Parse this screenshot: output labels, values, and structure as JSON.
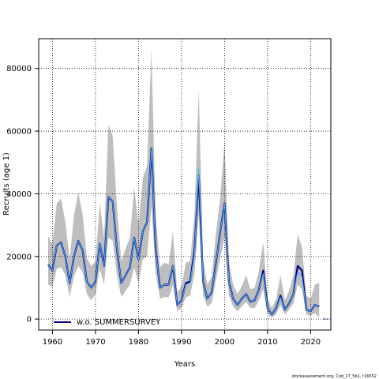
{
  "chart_data": {
    "type": "line",
    "xlabel": "Years",
    "ylabel": "Recruits (age 1)",
    "xlim": [
      1956.8,
      2024.7
    ],
    "ylim": [
      -3500,
      89500
    ],
    "x_ticks": [
      1960,
      1970,
      1980,
      1990,
      2000,
      2010,
      2020
    ],
    "y_ticks": [
      0,
      20000,
      40000,
      60000,
      80000
    ],
    "y_tick_labels": [
      "0",
      "20000",
      "40000",
      "60000",
      "80000"
    ],
    "grid": true,
    "legend_position": "bottom-left",
    "credit": "stockassessment.org, Cod_27_5b1, r16552",
    "series": [
      {
        "name": "w.o. SUMMERSURVEY",
        "color": "#000080",
        "x": [
          1959,
          1960,
          1961,
          1962,
          1963,
          1964,
          1965,
          1966,
          1967,
          1968,
          1969,
          1970,
          1971,
          1972,
          1973,
          1974,
          1975,
          1976,
          1977,
          1978,
          1979,
          1980,
          1981,
          1982,
          1983,
          1984,
          1985,
          1986,
          1987,
          1988,
          1989,
          1990,
          1991,
          1992,
          1993,
          1994,
          1995,
          1996,
          1997,
          1998,
          1999,
          2000,
          2001,
          2002,
          2003,
          2004,
          2005,
          2006,
          2007,
          2008,
          2009,
          2010,
          2011,
          2012,
          2013,
          2014,
          2015,
          2016,
          2017,
          2018,
          2019,
          2020,
          2021,
          2022
        ],
        "y": [
          17500,
          15500,
          23500,
          24500,
          20000,
          11500,
          20000,
          25000,
          22000,
          12000,
          10000,
          12000,
          24000,
          17000,
          39000,
          37500,
          22000,
          11500,
          14000,
          16500,
          26000,
          19000,
          28000,
          31000,
          54500,
          22000,
          10000,
          11000,
          11000,
          17000,
          4500,
          6000,
          11500,
          12000,
          22000,
          46000,
          12000,
          6500,
          8500,
          18000,
          28000,
          37000,
          12000,
          6500,
          4500,
          6500,
          8000,
          5500,
          6000,
          9500,
          15500,
          3500,
          1500,
          3500,
          7500,
          3000,
          5000,
          8000,
          17000,
          15500,
          3000,
          2500,
          4500,
          4000
        ]
      },
      {
        "name": "",
        "color": "#4ab0f0",
        "x": [
          1959,
          1960,
          1961,
          1962,
          1963,
          1964,
          1965,
          1966,
          1967,
          1968,
          1969,
          1970,
          1971,
          1972,
          1973,
          1974,
          1975,
          1976,
          1977,
          1978,
          1979,
          1980,
          1981,
          1982,
          1983,
          1984,
          1985,
          1986,
          1987,
          1988,
          1989,
          1990,
          1991,
          1992,
          1993,
          1994,
          1995,
          1996,
          1997,
          1998,
          1999,
          2000,
          2001,
          2002,
          2003,
          2004,
          2005,
          2006,
          2007,
          2008,
          2009,
          2010,
          2011,
          2012,
          2013,
          2014,
          2015,
          2016,
          2017,
          2018,
          2019,
          2020,
          2021,
          2022
        ],
        "y": [
          17500,
          15500,
          23500,
          24500,
          20000,
          11500,
          20000,
          25000,
          22000,
          12000,
          10000,
          12000,
          24000,
          17000,
          39000,
          37500,
          22000,
          11500,
          14000,
          16500,
          26000,
          19000,
          28000,
          31000,
          54500,
          22000,
          10000,
          11000,
          11000,
          17000,
          4500,
          6000,
          11000,
          11500,
          21000,
          48000,
          12000,
          6500,
          8500,
          18000,
          28000,
          37000,
          12000,
          6500,
          4500,
          6500,
          8000,
          5500,
          6000,
          9500,
          14500,
          3500,
          1500,
          3500,
          7000,
          3000,
          5000,
          8000,
          15000,
          13500,
          3000,
          2500,
          4500,
          4000
        ]
      },
      {
        "name": "",
        "color": "#000080",
        "x": [
          2023,
          2024.5
        ],
        "y": [
          0,
          0
        ]
      }
    ],
    "confidence_band": {
      "color": "#bebebe",
      "x": [
        1959,
        1960,
        1961,
        1962,
        1963,
        1964,
        1965,
        1966,
        1967,
        1968,
        1969,
        1970,
        1971,
        1972,
        1973,
        1974,
        1975,
        1976,
        1977,
        1978,
        1979,
        1980,
        1981,
        1982,
        1983,
        1984,
        1985,
        1986,
        1987,
        1988,
        1989,
        1990,
        1991,
        1992,
        1993,
        1994,
        1995,
        1996,
        1997,
        1998,
        1999,
        2000,
        2001,
        2002,
        2003,
        2004,
        2005,
        2006,
        2007,
        2008,
        2009,
        2010,
        2011,
        2012,
        2013,
        2014,
        2015,
        2016,
        2017,
        2018,
        2019,
        2020,
        2021,
        2022
      ],
      "lower": [
        11000,
        10500,
        16000,
        16500,
        14000,
        7000,
        13500,
        17000,
        15000,
        8000,
        6000,
        8000,
        16000,
        11000,
        26000,
        25000,
        14000,
        7000,
        9000,
        11000,
        16500,
        11500,
        19000,
        20000,
        36000,
        14500,
        6500,
        7000,
        7000,
        11000,
        2500,
        3500,
        7000,
        7500,
        14500,
        33500,
        7500,
        4000,
        5000,
        12500,
        19500,
        26000,
        7500,
        4000,
        2500,
        4000,
        5500,
        3500,
        3500,
        6000,
        9500,
        1500,
        500,
        1500,
        4500,
        1500,
        3000,
        5000,
        11000,
        9500,
        1500,
        1000,
        2000,
        500
      ],
      "upper": [
        26500,
        24000,
        37000,
        38500,
        31000,
        19000,
        33000,
        40500,
        33500,
        19500,
        17000,
        18500,
        37000,
        26000,
        62000,
        58500,
        35500,
        18500,
        22500,
        26000,
        42000,
        30500,
        45000,
        49000,
        86000,
        33000,
        16500,
        18000,
        17500,
        28000,
        8500,
        10500,
        18000,
        18500,
        33500,
        73500,
        19000,
        11000,
        13500,
        27500,
        39000,
        56500,
        18500,
        11000,
        8000,
        10500,
        14000,
        9500,
        10000,
        15500,
        24500,
        6500,
        3500,
        6500,
        14000,
        6000,
        9000,
        14000,
        27000,
        23000,
        7500,
        6500,
        11000,
        11500
      ]
    }
  }
}
